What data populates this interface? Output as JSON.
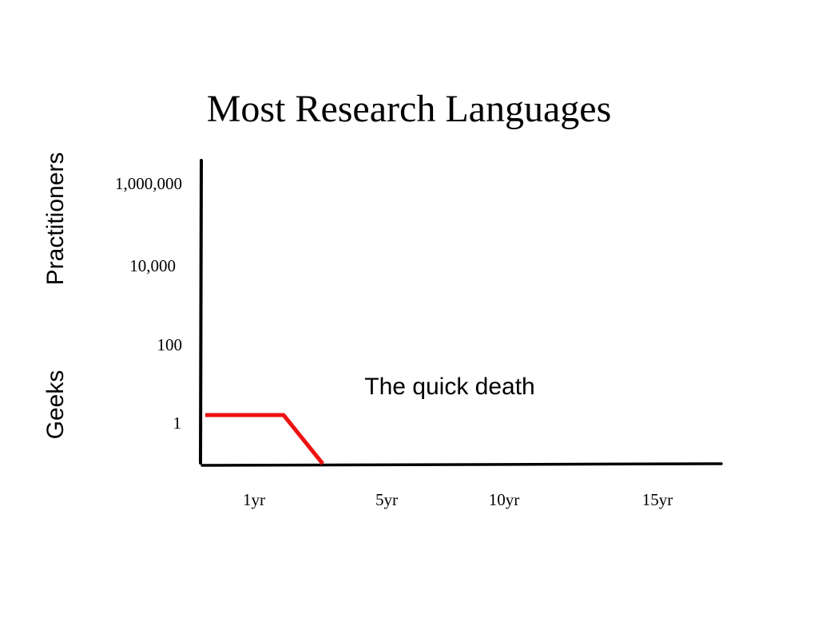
{
  "title": "Most Research Languages",
  "annotation": "The quick death",
  "colors": {
    "series": "#ee1111",
    "axis": "#000000",
    "text": "#000000"
  },
  "chart_data": {
    "type": "line",
    "title": "Most Research Languages",
    "y_side_labels": [
      "Practitioners",
      "Geeks"
    ],
    "y_ticks": [
      "1,000,000",
      "10,000",
      "100",
      "1"
    ],
    "x_ticks": [
      "1yr",
      "5yr",
      "10yr",
      "15yr"
    ],
    "y_scale": "log",
    "grid": false,
    "legend": "none",
    "series": [
      {
        "points": [
          {
            "x": "0yr",
            "y": 1
          },
          {
            "x": "1yr",
            "y": 1
          },
          {
            "x": "1.5yr",
            "y": 0
          }
        ]
      }
    ],
    "annotations": [
      "The quick death"
    ]
  }
}
